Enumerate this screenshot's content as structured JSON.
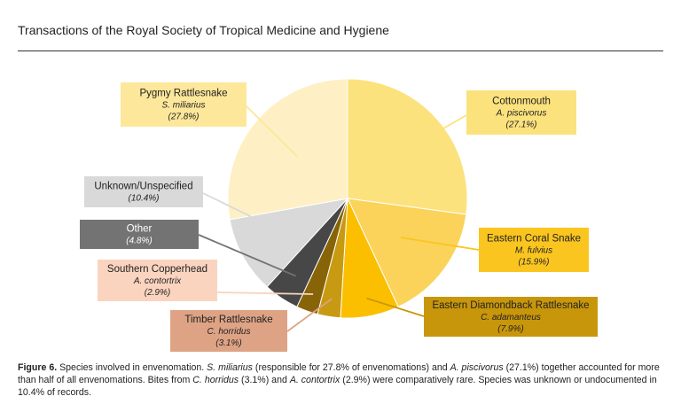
{
  "header": {
    "journal_title": "Transactions of the Royal Society of Tropical Medicine and Hygiene"
  },
  "chart_data": {
    "type": "pie",
    "title": "",
    "start": "top",
    "direction": "clockwise",
    "slices": [
      {
        "name": "Cottonmouth",
        "species": "A. piscivorus",
        "value": 27.1,
        "percent_label": "(27.1%)",
        "color": "#fce27d",
        "label_bg": "#fce27d",
        "label_text_color": "#222222"
      },
      {
        "name": "Eastern Coral Snake",
        "species": "M. fulvius",
        "value": 15.9,
        "percent_label": "(15.9%)",
        "color": "#fbd35a",
        "label_bg": "#fbc51f",
        "label_text_color": "#222222"
      },
      {
        "name": "Eastern Diamondback Rattlesnake",
        "species": "C. adamanteus",
        "value": 7.9,
        "percent_label": "(7.9%)",
        "color": "#fbbf00",
        "label_bg": "#c8960a",
        "label_text_color": "#222222"
      },
      {
        "name": "Timber Rattlesnake",
        "species": "C. horridus",
        "value": 3.1,
        "percent_label": "(3.1%)",
        "color": "#c89a12",
        "label_bg": "#dea385",
        "label_text_color": "#222222"
      },
      {
        "name": "Southern Copperhead",
        "species": "A. contortrix",
        "value": 2.9,
        "percent_label": "(2.9%)",
        "color": "#876408",
        "label_bg": "#fad4bf",
        "label_text_color": "#222222"
      },
      {
        "name": "Other",
        "species": "",
        "value": 4.8,
        "percent_label": "(4.8%)",
        "color": "#474747",
        "label_bg": "#737373",
        "label_text_color": "#ffffff"
      },
      {
        "name": "Unknown/Unspecified",
        "species": "",
        "value": 10.4,
        "percent_label": "(10.4%)",
        "color": "#d9d9d9",
        "label_bg": "#d9d9d9",
        "label_text_color": "#222222"
      },
      {
        "name": "Pygmy Rattlesnake",
        "species": "S. miliarius",
        "value": 27.8,
        "percent_label": "(27.8%)",
        "color": "#fef0c4",
        "label_bg": "#fde79a",
        "label_text_color": "#222222"
      }
    ]
  },
  "caption": {
    "label": "Figure 6.",
    "parts": [
      {
        "text": " Species involved in envenomation. ",
        "italic": false
      },
      {
        "text": "S. miliarius",
        "italic": true
      },
      {
        "text": " (responsible for 27.8% of envenomations) and ",
        "italic": false
      },
      {
        "text": "A. piscivorus",
        "italic": true
      },
      {
        "text": " (27.1%) together accounted for more than half of all envenomations. Bites from ",
        "italic": false
      },
      {
        "text": "C. horridus",
        "italic": true
      },
      {
        "text": " (3.1%) and ",
        "italic": false
      },
      {
        "text": "A. contortrix",
        "italic": true
      },
      {
        "text": " (2.9%) were comparatively rare. Species was unknown or undocumented in 10.4% of records.",
        "italic": false
      }
    ]
  }
}
